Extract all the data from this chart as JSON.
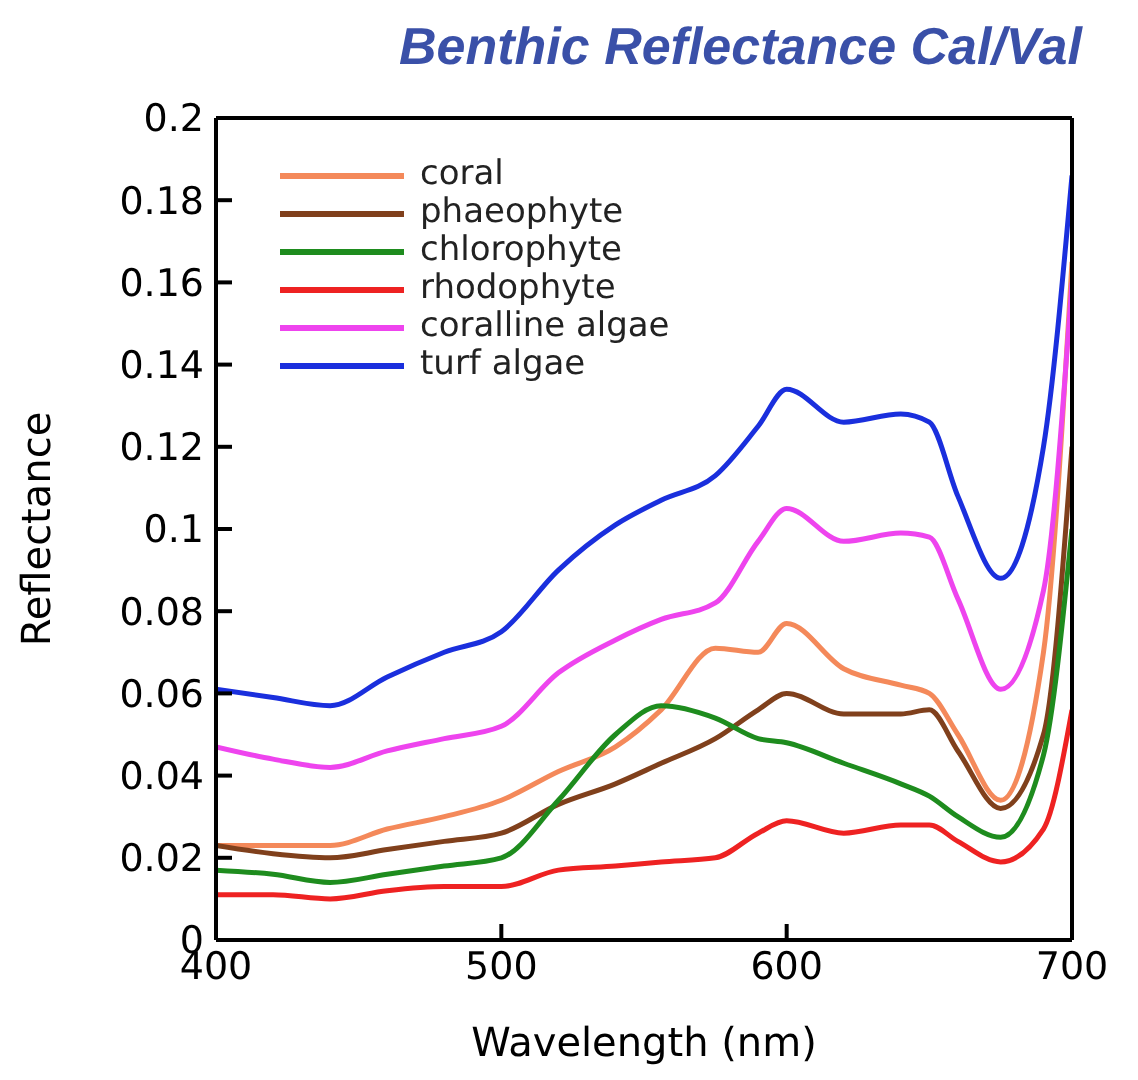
{
  "chart_data": {
    "type": "line",
    "title": "Benthic Reflectance Cal/Val",
    "xlabel": "Wavelength (nm)",
    "ylabel": "Reflectance",
    "x": [
      400,
      420,
      440,
      460,
      480,
      500,
      520,
      540,
      556,
      575,
      590,
      600,
      620,
      640,
      650,
      660,
      675,
      690,
      700
    ],
    "series": [
      {
        "name": "coral",
        "color": "#f4895a",
        "values": [
          0.023,
          0.023,
          0.023,
          0.027,
          0.03,
          0.034,
          0.041,
          0.047,
          0.056,
          0.071,
          0.07,
          0.077,
          0.066,
          0.062,
          0.06,
          0.05,
          0.034,
          0.07,
          0.165
        ]
      },
      {
        "name": "phaeophyte",
        "color": "#80401c",
        "values": [
          0.023,
          0.021,
          0.02,
          0.022,
          0.024,
          0.026,
          0.033,
          0.038,
          0.043,
          0.049,
          0.056,
          0.06,
          0.055,
          0.055,
          0.056,
          0.046,
          0.032,
          0.05,
          0.12
        ]
      },
      {
        "name": "chlorophyte",
        "color": "#1e8c1e",
        "values": [
          0.017,
          0.016,
          0.014,
          0.016,
          0.018,
          0.02,
          0.034,
          0.05,
          0.057,
          0.054,
          0.049,
          0.048,
          0.043,
          0.038,
          0.035,
          0.03,
          0.025,
          0.045,
          0.1
        ]
      },
      {
        "name": "rhodophyte",
        "color": "#ee2222",
        "values": [
          0.011,
          0.011,
          0.01,
          0.012,
          0.013,
          0.013,
          0.017,
          0.018,
          0.019,
          0.02,
          0.026,
          0.029,
          0.026,
          0.028,
          0.028,
          0.024,
          0.019,
          0.027,
          0.056
        ]
      },
      {
        "name": "coralline algae",
        "color": "#ee44ee",
        "values": [
          0.047,
          0.044,
          0.042,
          0.046,
          0.049,
          0.052,
          0.065,
          0.073,
          0.078,
          0.082,
          0.097,
          0.105,
          0.097,
          0.099,
          0.098,
          0.083,
          0.061,
          0.085,
          0.16
        ]
      },
      {
        "name": "turf algae",
        "color": "#1a2fdd",
        "values": [
          0.061,
          0.059,
          0.057,
          0.064,
          0.07,
          0.075,
          0.09,
          0.101,
          0.107,
          0.113,
          0.125,
          0.134,
          0.126,
          0.128,
          0.126,
          0.108,
          0.088,
          0.12,
          0.186
        ]
      }
    ],
    "xlim": [
      400,
      700
    ],
    "xticks": [
      400,
      500,
      600,
      700
    ],
    "ylim": [
      0,
      0.2
    ],
    "yticks": [
      0,
      0.02,
      0.04,
      0.06,
      0.08,
      0.1,
      0.12,
      0.14,
      0.16,
      0.18,
      0.2
    ],
    "grid": false,
    "legend": "top left",
    "marker": "none",
    "line_style": "solid"
  }
}
